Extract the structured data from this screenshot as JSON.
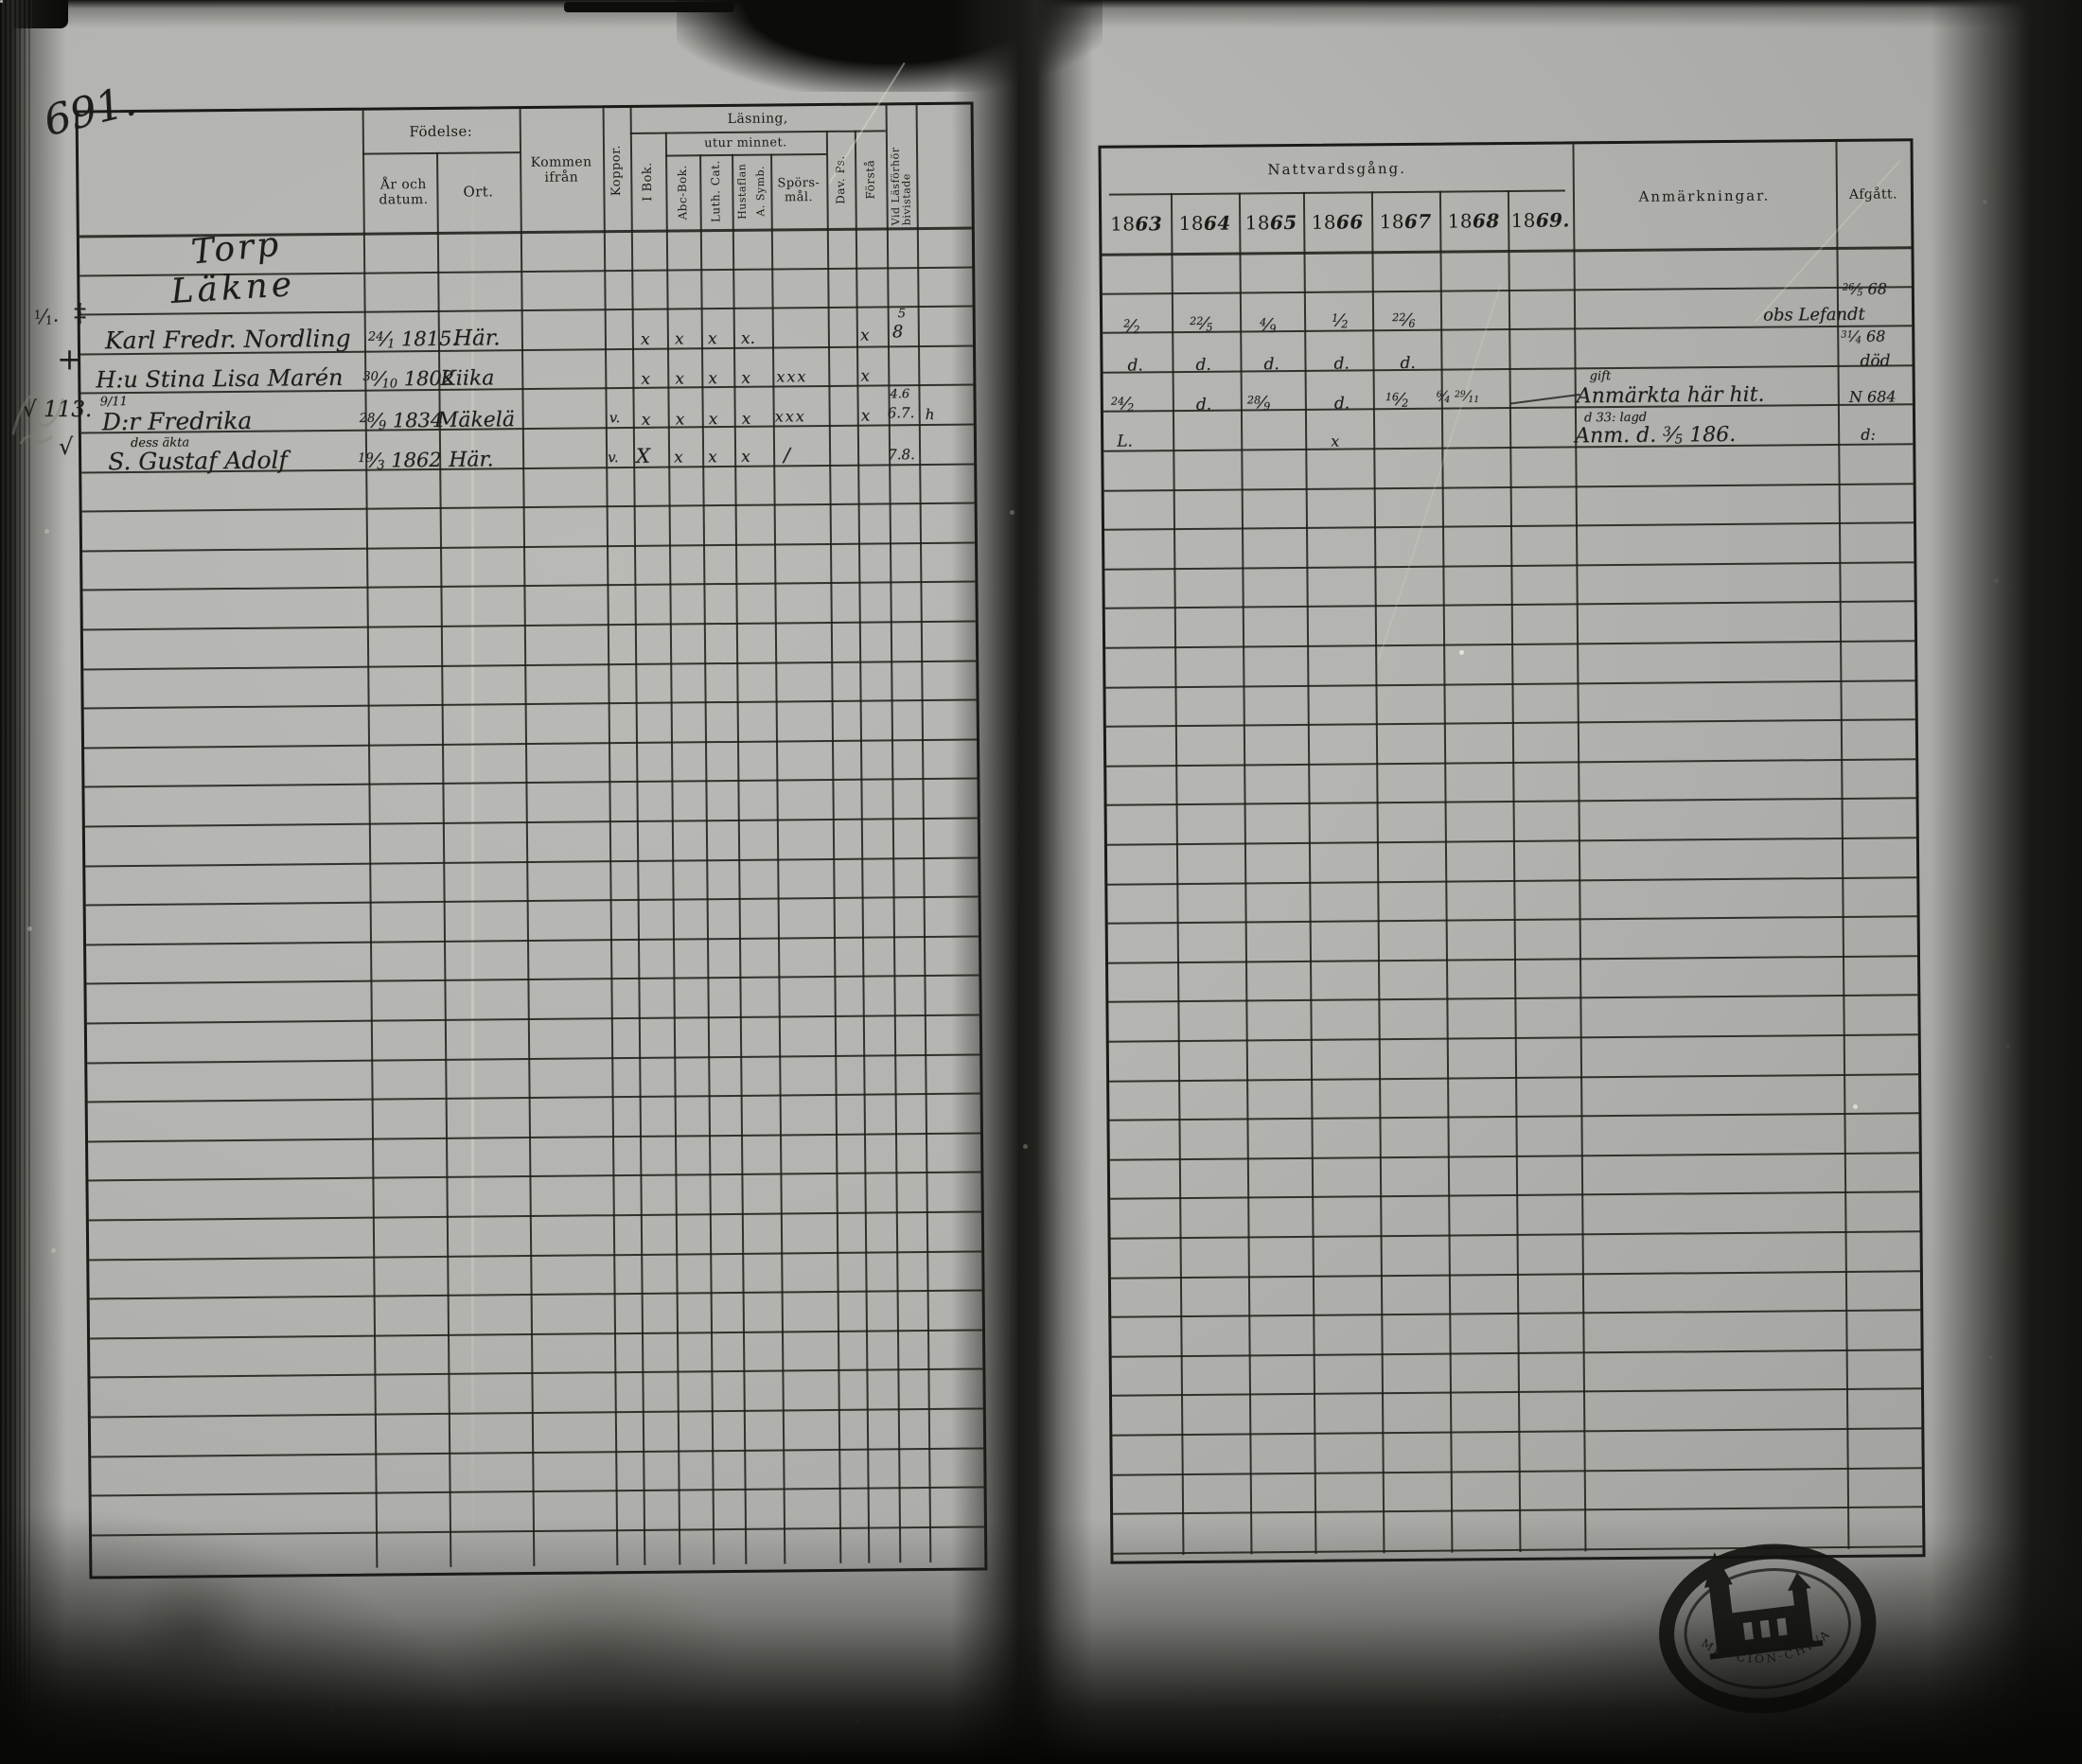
{
  "page": {
    "number": "691."
  },
  "left_table": {
    "header": {
      "fodelse": "Födelse:",
      "ar_och_datum": "År och datum.",
      "ort": "Ort.",
      "kommen_ifran": "Kommen ifrån",
      "koppor": "Koppor.",
      "lasning": "Läsning,",
      "utur_minnet": "utur minnet.",
      "i_bok": "I Bok.",
      "abc_bok": "Abc-Bok.",
      "luth_cat": "Luth. Cat.",
      "hustaflan": "Hustaflan",
      "a_symb": "A. Symb.",
      "sporsmal_1": "Spörs-",
      "sporsmal_2": "mål.",
      "dav_ps": "Dav. Ps.",
      "forsta": "Förstå",
      "vid_lasforhor": "Vid Läsförhör bivistade"
    },
    "rows": [
      {
        "name": "Torp"
      },
      {
        "name": "Läkne"
      },
      {
        "margin": "1/1.",
        "margin_mark": "‡",
        "name": "Karl Fredr. Nordling",
        "born": "24/1 1815.",
        "ort": "Här.",
        "i_bok": "x",
        "abc": "x",
        "luth": "x",
        "hust": "x.",
        "forsta": "x",
        "vid_a": "5",
        "vid_b": "8"
      },
      {
        "margin": "+",
        "name": "H:u Stina Lisa Marén",
        "born": "30/10 1802",
        "ort": "Kiika",
        "i_bok": "x",
        "abc": "x",
        "luth": "x",
        "hust": "x",
        "spors": "xxx",
        "forsta": "x"
      },
      {
        "margin": "√ 113.",
        "note_above": "9/11",
        "name": "D:r Fredrika",
        "born": "28/9 1834",
        "ort": "Mäkelä",
        "koppor": "v.",
        "i_bok": "x",
        "abc": "x",
        "luth": "x",
        "hust": "x",
        "spors": "xxx",
        "forsta": "x",
        "vid_a": "4.6",
        "vid_b": "6.7.",
        "vid_c": "h"
      },
      {
        "margin": "√",
        "note_above": "dess äkta",
        "name": "S. Gustaf Adolf",
        "born": "19/3 1862",
        "ort": "Här.",
        "koppor": "v.",
        "i_bok": "X",
        "abc": "x",
        "luth": "x",
        "hust": "x",
        "spors": "/",
        "vid_b": "7.8."
      }
    ]
  },
  "right_table": {
    "header": {
      "nattvardsgang": "Nattvardsgång.",
      "anmarkningar": "Anmärkningar.",
      "afgatt": "Afgått.",
      "years": [
        "1863",
        "1864",
        "1865",
        "1866",
        "1867",
        "1868",
        "1869."
      ]
    },
    "rows": [
      {
        "y1863": "2/2",
        "y1864": "22/5",
        "y1865": "4/9",
        "y1866": "1/2",
        "y1867": "22/6",
        "afgatt_1": "26/5 68",
        "afgatt_2": "obs Lefandt"
      },
      {
        "y1863": "d.",
        "y1864": "d.",
        "y1865": "d.",
        "y1866": "d.",
        "y1867": "d.",
        "afgatt_1": "31/4 68",
        "afgatt_2": "död"
      },
      {
        "y1863": "24/2",
        "y1864": "d.",
        "y1865": "28/9",
        "y1866": "d.",
        "y1867": "16/2",
        "y1868": "6/4 29/11",
        "anm_above": "gift",
        "anm": "Anmärkta här hit.",
        "anm_small": "d 33: lagd",
        "afgatt_1": "N 684"
      },
      {
        "y1863": "L.",
        "y1866": "x",
        "anm": "Anm. d. 3/5 186.",
        "afgatt_1": "d:"
      }
    ]
  },
  "stamp": {
    "arc_top": "DIO·ZU·FALGBDENSE",
    "arc_bottom": "MIF·CION·CHIVA"
  }
}
